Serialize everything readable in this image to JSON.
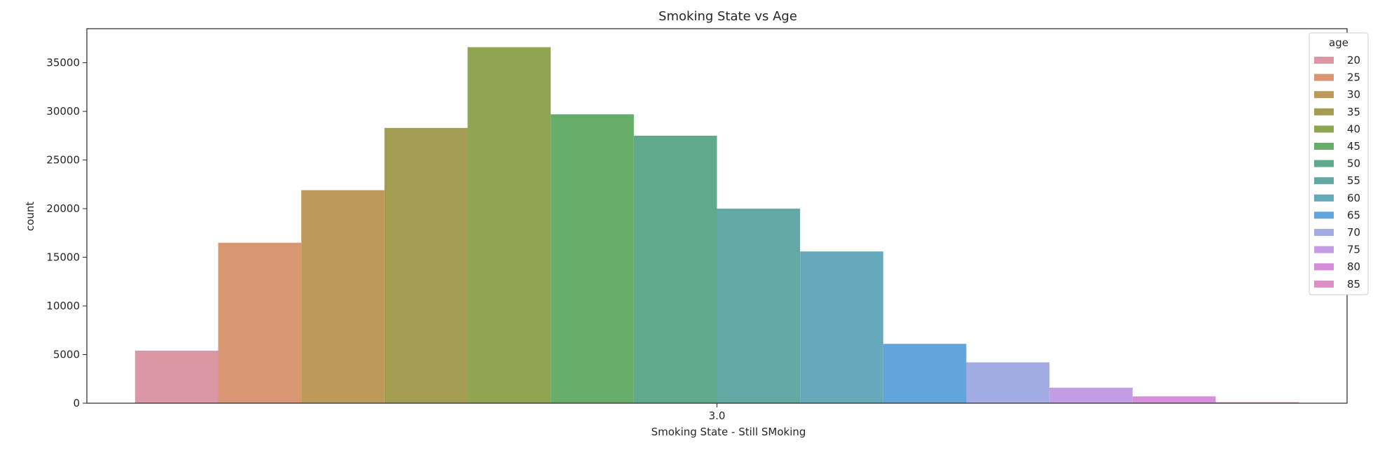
{
  "chart_data": {
    "type": "bar",
    "title": "Smoking State vs Age",
    "xlabel": "Smoking State - Still SMoking",
    "ylabel": "count",
    "categories": [
      "3.0"
    ],
    "ylim": [
      0,
      38500
    ],
    "yticks": [
      0,
      5000,
      10000,
      15000,
      20000,
      25000,
      30000,
      35000
    ],
    "legend_title": "age",
    "legend_position": "top-right",
    "grid": false,
    "series": [
      {
        "name": "20",
        "values": [
          5400
        ],
        "color": "#dc97a4"
      },
      {
        "name": "25",
        "values": [
          16500
        ],
        "color": "#d89673"
      },
      {
        "name": "30",
        "values": [
          21900
        ],
        "color": "#bd9a5a"
      },
      {
        "name": "35",
        "values": [
          28300
        ],
        "color": "#a39d51"
      },
      {
        "name": "40",
        "values": [
          36600
        ],
        "color": "#8fa551"
      },
      {
        "name": "45",
        "values": [
          29700
        ],
        "color": "#67ad6a"
      },
      {
        "name": "50",
        "values": [
          27500
        ],
        "color": "#5faa8c"
      },
      {
        "name": "55",
        "values": [
          20000
        ],
        "color": "#63a9a3"
      },
      {
        "name": "60",
        "values": [
          15600
        ],
        "color": "#66a9ba"
      },
      {
        "name": "65",
        "values": [
          6100
        ],
        "color": "#62a5dc"
      },
      {
        "name": "70",
        "values": [
          4200
        ],
        "color": "#a3abe4"
      },
      {
        "name": "75",
        "values": [
          1600
        ],
        "color": "#c39de4"
      },
      {
        "name": "80",
        "values": [
          700
        ],
        "color": "#d58fd8"
      },
      {
        "name": "85",
        "values": [
          100
        ],
        "color": "#dc8fc5"
      }
    ]
  }
}
